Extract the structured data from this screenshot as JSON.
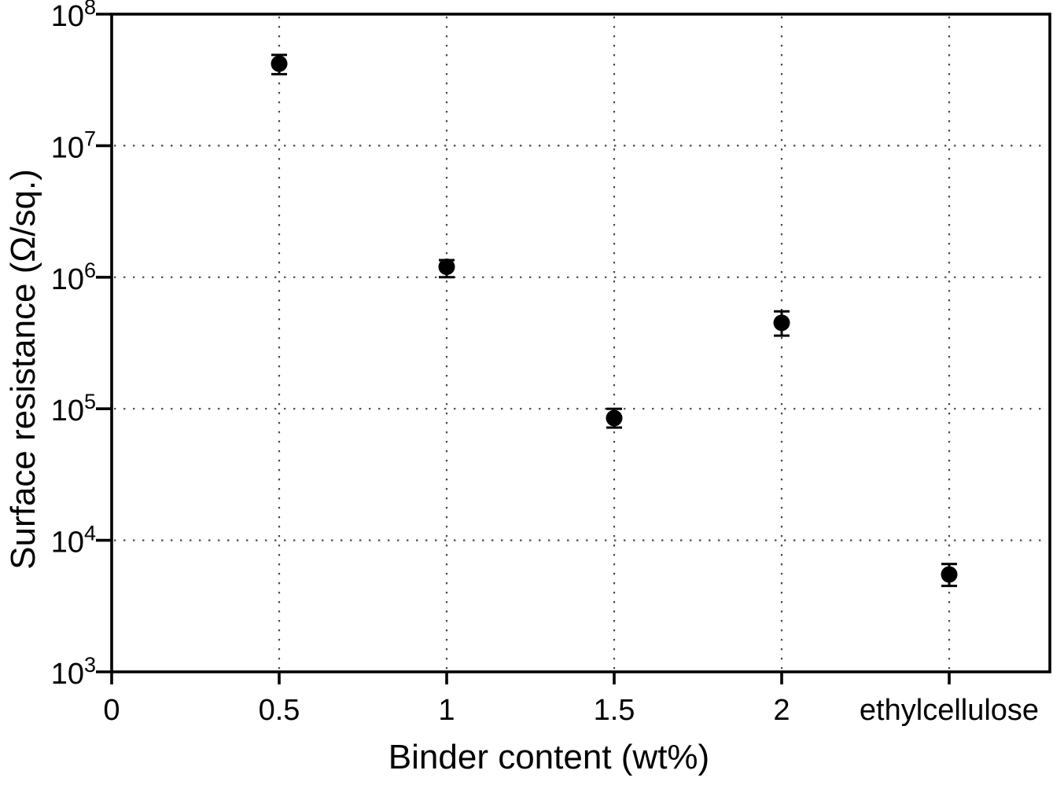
{
  "chart_data": {
    "type": "scatter",
    "title": "",
    "xlabel": "Binder content (wt%)",
    "ylabel": "Surface resistance (Ω/sq.)",
    "x_categories": [
      "0",
      "0.5",
      "1",
      "1.5",
      "2",
      "ethylcellulose"
    ],
    "x_gridline_categories": [
      "0.5",
      "1",
      "1.5",
      "2",
      "ethylcellulose"
    ],
    "y_scale": "log",
    "y_tick_exponents": [
      3,
      4,
      5,
      6,
      7,
      8
    ],
    "y_tick_base": "10",
    "y_gridline_exponents": [
      4,
      5,
      6,
      7
    ],
    "ylim": [
      1000,
      100000000
    ],
    "grid": "dotted",
    "legend": "none",
    "series": [
      {
        "name": "surface-resistance",
        "marker": "filled-circle",
        "color": "#000000",
        "points": [
          {
            "category": "0.5",
            "value": 42000000,
            "err_low": 35000000,
            "err_high": 49000000
          },
          {
            "category": "1",
            "value": 1200000,
            "err_low": 1000000,
            "err_high": 1350000
          },
          {
            "category": "1.5",
            "value": 85000,
            "err_low": 72000,
            "err_high": 100000
          },
          {
            "category": "2",
            "value": 450000,
            "err_low": 360000,
            "err_high": 550000
          },
          {
            "category": "ethylcellulose",
            "value": 5500,
            "err_low": 4500,
            "err_high": 6600
          }
        ]
      }
    ]
  },
  "colors": {
    "axis": "#000000",
    "grid": "#4a4a4a",
    "marker": "#000000",
    "background": "#ffffff"
  }
}
